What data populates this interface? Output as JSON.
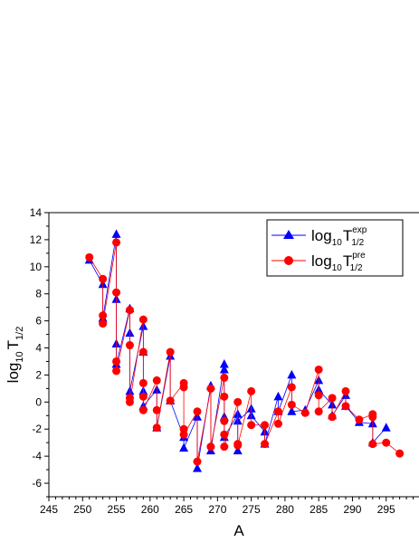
{
  "chart_data": {
    "type": "scatter",
    "xlabel": "A",
    "ylabel_main": "log",
    "ylabel_sub": "10",
    "ylabel_base": "T",
    "ylabel_subscript": "1/2",
    "xlim": [
      245,
      300
    ],
    "ylim": [
      -7,
      14
    ],
    "xticks": [
      245,
      250,
      255,
      260,
      265,
      270,
      275,
      280,
      285,
      290,
      295
    ],
    "yticks": [
      -6,
      -4,
      -2,
      0,
      2,
      4,
      6,
      8,
      10,
      12,
      14
    ],
    "legend_position": "top-right",
    "grid": false,
    "series": [
      {
        "name": "log10T1/2exp",
        "legend_main": "log",
        "legend_sub": "10",
        "legend_base": "T",
        "legend_super": "exp",
        "legend_subscript": "1/2",
        "color": "#0000ff",
        "marker": "triangle",
        "x": [
          251,
          253,
          253,
          255,
          255,
          255,
          255,
          257,
          257,
          257,
          259,
          259,
          259,
          259,
          261,
          261,
          263,
          263,
          265,
          265,
          267,
          267,
          269,
          269,
          271,
          271,
          271,
          271,
          273,
          273,
          273,
          275,
          275,
          277,
          277,
          279,
          279,
          281,
          281,
          283,
          285,
          285,
          287,
          287,
          289,
          289,
          291,
          293,
          293,
          295
        ],
        "y": [
          10.5,
          8.7,
          6.2,
          12.4,
          7.6,
          4.3,
          2.8,
          6.9,
          5.1,
          0.8,
          5.6,
          3.7,
          0.8,
          -0.3,
          0.9,
          -1.9,
          3.4,
          0.1,
          -2.6,
          -3.4,
          -1.1,
          -4.9,
          1.2,
          -3.6,
          2.8,
          2.4,
          -1.1,
          -2.6,
          -0.9,
          -3.6,
          -1.4,
          -0.5,
          -1.0,
          -2.2,
          -3.1,
          0.4,
          -0.7,
          2.0,
          -0.7,
          -0.6,
          1.6,
          0.9,
          -0.2,
          -1.0,
          0.5,
          -0.3,
          -1.5,
          -1.6,
          -3.0,
          -1.9
        ]
      },
      {
        "name": "log10T1/2pre",
        "legend_main": "log",
        "legend_sub": "10",
        "legend_base": "T",
        "legend_super": "pre",
        "legend_subscript": "1/2",
        "color": "#ff0000",
        "marker": "circle",
        "x": [
          251,
          253,
          253,
          253,
          255,
          255,
          255,
          255,
          257,
          257,
          257,
          257,
          259,
          259,
          259,
          259,
          259,
          261,
          261,
          261,
          263,
          263,
          265,
          265,
          265,
          265,
          267,
          267,
          269,
          269,
          271,
          271,
          271,
          271,
          271,
          273,
          273,
          273,
          275,
          275,
          277,
          277,
          279,
          279,
          281,
          281,
          283,
          285,
          285,
          285,
          287,
          287,
          289,
          289,
          291,
          293,
          293,
          293,
          295,
          297
        ],
        "y": [
          10.7,
          9.1,
          6.4,
          5.8,
          11.8,
          8.1,
          3.0,
          2.3,
          6.8,
          4.2,
          0.3,
          0.0,
          6.1,
          3.7,
          1.4,
          0.4,
          -0.6,
          1.6,
          -0.6,
          -1.9,
          3.7,
          0.1,
          1.4,
          1.1,
          -2.0,
          -2.4,
          -0.7,
          -4.4,
          1.0,
          -3.3,
          1.8,
          0.4,
          -1.4,
          -2.4,
          -3.3,
          0.0,
          -3.1,
          -3.2,
          0.8,
          -1.7,
          -1.7,
          -3.1,
          -0.7,
          -1.6,
          1.1,
          -0.2,
          -0.8,
          2.4,
          0.5,
          -0.7,
          0.3,
          -1.1,
          0.8,
          -0.3,
          -1.3,
          -0.9,
          -1.1,
          -3.1,
          -3.0,
          -3.8
        ]
      }
    ]
  }
}
